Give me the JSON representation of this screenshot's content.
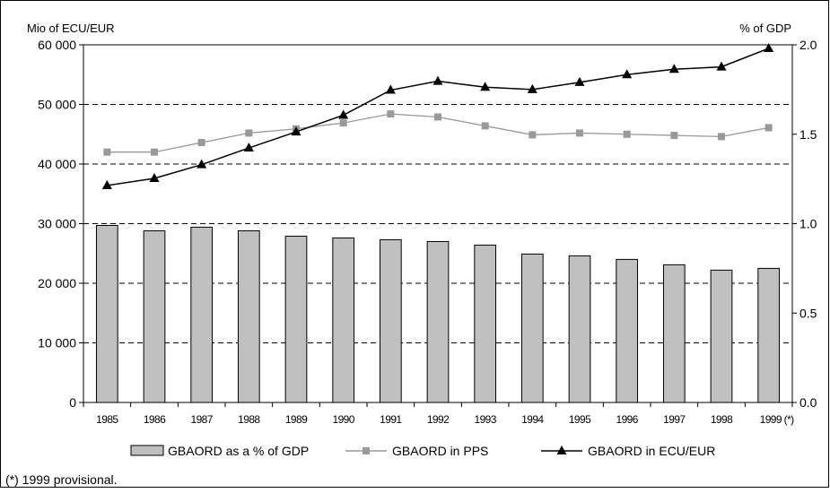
{
  "chart_data": {
    "type": "bar",
    "left_axis_title": "Mio of ECU/EUR",
    "right_axis_title": "% of GDP",
    "categories": [
      "1985",
      "1986",
      "1987",
      "1988",
      "1989",
      "1990",
      "1991",
      "1992",
      "1993",
      "1994",
      "1995",
      "1996",
      "1997",
      "1998",
      "1999 (*)"
    ],
    "left_axis": {
      "ylim": [
        0,
        60000
      ],
      "ticks": [
        0,
        10000,
        20000,
        30000,
        40000,
        50000,
        60000
      ],
      "tick_labels": [
        "0",
        "10 000",
        "20 000",
        "30 000",
        "40 000",
        "50 000",
        "60 000"
      ]
    },
    "right_axis": {
      "ylim": [
        0.0,
        2.0
      ],
      "ticks": [
        0.0,
        0.5,
        1.0,
        1.5,
        2.0
      ],
      "tick_labels": [
        "0.0",
        "0.5",
        "1.0",
        "1.5",
        "2.0"
      ]
    },
    "grid": "dashed horizontal",
    "legend_placement": "bottom",
    "series": [
      {
        "name": "GBAORD as a % of GDP",
        "type": "bar",
        "axis": "right",
        "color": "#c0c0c0",
        "values": [
          0.99,
          0.96,
          0.98,
          0.96,
          0.93,
          0.92,
          0.91,
          0.9,
          0.88,
          0.83,
          0.82,
          0.8,
          0.77,
          0.74,
          0.75
        ]
      },
      {
        "name": "GBAORD in PPS",
        "type": "line",
        "axis": "left",
        "marker": "square",
        "color": "#999999",
        "values": [
          42000,
          42000,
          43600,
          45200,
          45900,
          46900,
          48400,
          47900,
          46400,
          44900,
          45200,
          45000,
          44800,
          44600,
          46100
        ]
      },
      {
        "name": "GBAORD in ECU/EUR",
        "type": "line",
        "axis": "left",
        "marker": "triangle",
        "color": "#000000",
        "values": [
          36400,
          37600,
          39900,
          42700,
          45400,
          48200,
          52400,
          53900,
          52900,
          52500,
          53700,
          55000,
          55900,
          56300,
          59400
        ]
      }
    ]
  },
  "footnote": "(*) 1999 provisional."
}
